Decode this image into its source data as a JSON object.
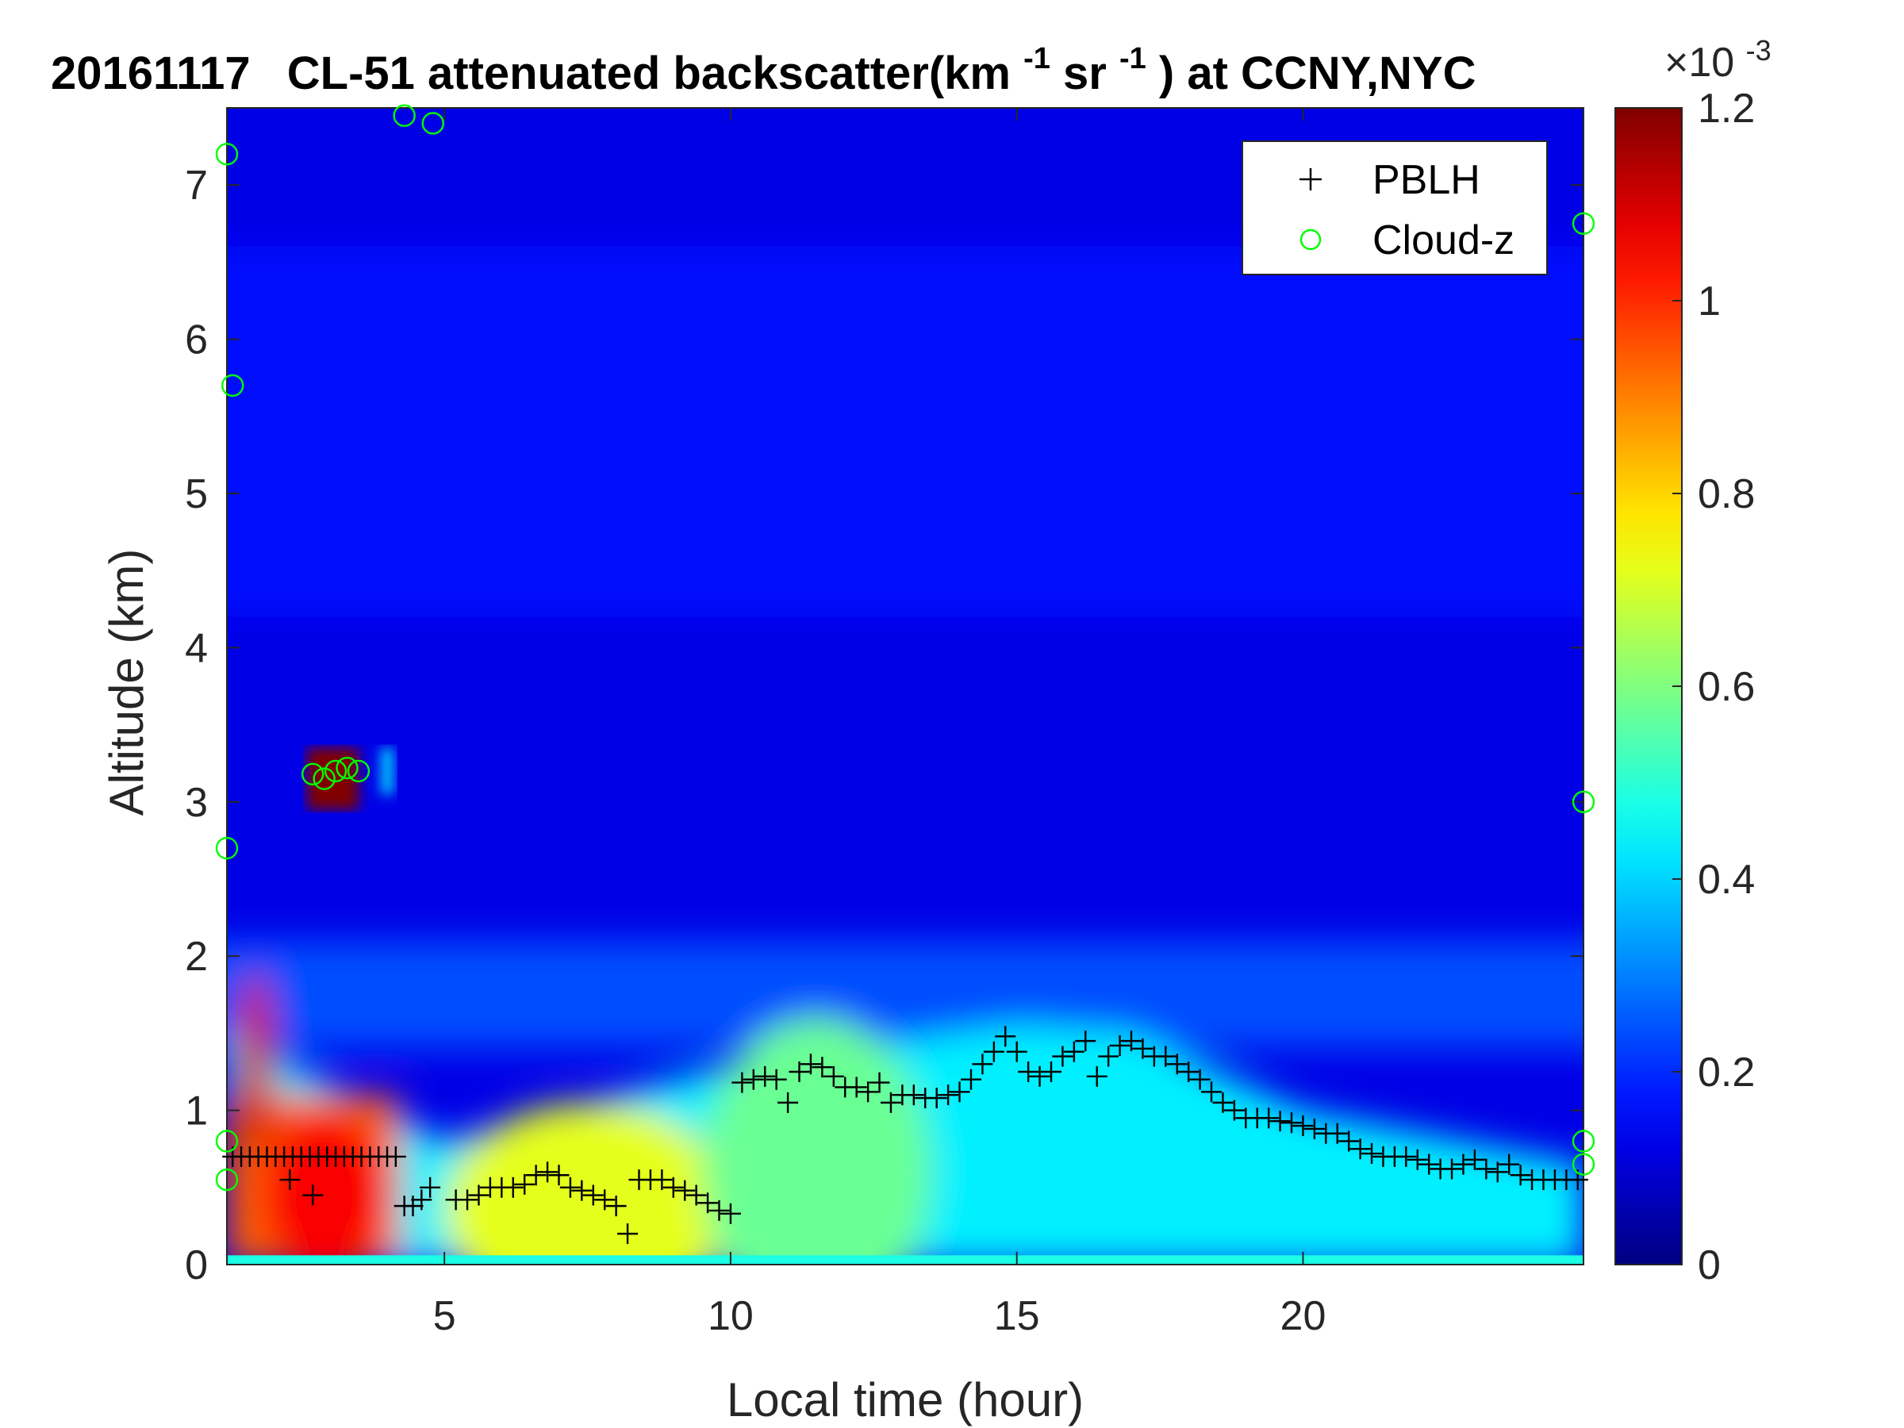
{
  "chart_data": {
    "type": "heatmap",
    "title": {
      "date": "20161117",
      "main": "CL-51 attenuated backscatter(km",
      "sup1": "-1",
      "mid": "sr",
      "sup2": "-1",
      "tail": ") at CCNY,NYC"
    },
    "xlabel": "Local time (hour)",
    "ylabel": "Altitude (km)",
    "xlim": [
      1.2,
      24.9
    ],
    "ylim": [
      0,
      7.5
    ],
    "xticks": [
      "5",
      "10",
      "15",
      "20"
    ],
    "xtick_values": [
      5,
      10,
      15,
      20
    ],
    "yticks": [
      "0",
      "1",
      "2",
      "3",
      "4",
      "5",
      "6",
      "7"
    ],
    "ytick_values": [
      0,
      1,
      2,
      3,
      4,
      5,
      6,
      7
    ],
    "colorbar": {
      "colormap": "jet",
      "range": [
        0,
        0.0012
      ],
      "exponent_label": "×10",
      "exponent_sup": "-3",
      "ticks": [
        "0",
        "0.2",
        "0.4",
        "0.6",
        "0.8",
        "1",
        "1.2"
      ],
      "tick_values": [
        0,
        0.2,
        0.4,
        0.6,
        0.8,
        1.0,
        1.2
      ]
    },
    "legend": {
      "placement": "top-right",
      "entries": [
        {
          "name": "PBLH",
          "marker": "plus",
          "color": "#000000"
        },
        {
          "name": "Cloud-z",
          "marker": "circle",
          "color": "#00ff00"
        }
      ]
    },
    "series": [
      {
        "name": "PBLH",
        "x": [
          1.3,
          1.45,
          1.6,
          1.75,
          1.9,
          2.05,
          2.2,
          2.35,
          2.5,
          2.65,
          2.8,
          2.95,
          3.1,
          3.25,
          3.4,
          3.55,
          3.7,
          3.85,
          4.0,
          4.15,
          2.3,
          2.7,
          4.3,
          4.45,
          4.6,
          4.75,
          5.2,
          5.4,
          5.6,
          5.8,
          6.0,
          6.2,
          6.4,
          6.6,
          6.8,
          7.0,
          7.2,
          7.4,
          7.6,
          7.8,
          8.0,
          8.2,
          8.4,
          8.6,
          8.8,
          9.0,
          9.2,
          9.4,
          9.6,
          9.8,
          10.0,
          10.2,
          10.4,
          10.6,
          10.8,
          11.0,
          11.2,
          11.4,
          11.6,
          11.8,
          12.0,
          12.2,
          12.4,
          12.6,
          12.8,
          13.0,
          13.2,
          13.4,
          13.6,
          13.8,
          14.0,
          14.2,
          14.4,
          14.6,
          14.8,
          15.0,
          15.2,
          15.4,
          15.6,
          15.8,
          16.0,
          16.2,
          16.4,
          16.6,
          16.8,
          17.0,
          17.2,
          17.4,
          17.6,
          17.8,
          18.0,
          18.2,
          18.4,
          18.6,
          18.8,
          19.0,
          19.2,
          19.4,
          19.6,
          19.8,
          20.0,
          20.2,
          20.4,
          20.6,
          20.8,
          21.0,
          21.2,
          21.4,
          21.6,
          21.8,
          22.0,
          22.2,
          22.4,
          22.6,
          22.8,
          23.0,
          23.2,
          23.4,
          23.6,
          23.8,
          24.0,
          24.2,
          24.4,
          24.6,
          24.8
        ],
        "y": [
          0.7,
          0.7,
          0.7,
          0.7,
          0.7,
          0.7,
          0.7,
          0.7,
          0.7,
          0.7,
          0.7,
          0.7,
          0.7,
          0.7,
          0.7,
          0.7,
          0.7,
          0.7,
          0.7,
          0.7,
          0.55,
          0.45,
          0.38,
          0.38,
          0.42,
          0.5,
          0.42,
          0.42,
          0.45,
          0.5,
          0.5,
          0.5,
          0.52,
          0.58,
          0.6,
          0.58,
          0.5,
          0.48,
          0.45,
          0.42,
          0.38,
          0.2,
          0.55,
          0.55,
          0.55,
          0.5,
          0.48,
          0.45,
          0.4,
          0.35,
          0.33,
          1.18,
          1.2,
          1.22,
          1.2,
          1.05,
          1.25,
          1.3,
          1.28,
          1.22,
          1.15,
          1.15,
          1.12,
          1.18,
          1.05,
          1.1,
          1.1,
          1.08,
          1.08,
          1.1,
          1.12,
          1.2,
          1.3,
          1.38,
          1.48,
          1.38,
          1.25,
          1.22,
          1.25,
          1.35,
          1.38,
          1.45,
          1.22,
          1.35,
          1.42,
          1.45,
          1.4,
          1.35,
          1.35,
          1.3,
          1.25,
          1.2,
          1.12,
          1.05,
          1.0,
          0.95,
          0.95,
          0.95,
          0.93,
          0.92,
          0.9,
          0.88,
          0.85,
          0.85,
          0.8,
          0.75,
          0.72,
          0.7,
          0.7,
          0.7,
          0.68,
          0.65,
          0.62,
          0.62,
          0.65,
          0.68,
          0.62,
          0.6,
          0.65,
          0.58,
          0.55,
          0.55,
          0.55,
          0.55,
          0.55
        ]
      },
      {
        "name": "Cloud-z",
        "x": [
          2.7,
          2.9,
          3.1,
          3.3,
          3.5,
          1.2,
          1.2,
          1.2,
          1.2,
          1.3,
          4.3,
          4.8,
          24.9,
          24.9,
          24.9,
          24.9
        ],
        "y": [
          3.18,
          3.15,
          3.2,
          3.22,
          3.2,
          7.2,
          2.7,
          0.8,
          0.55,
          5.7,
          7.45,
          7.4,
          6.75,
          3.0,
          0.8,
          0.65
        ]
      }
    ]
  }
}
